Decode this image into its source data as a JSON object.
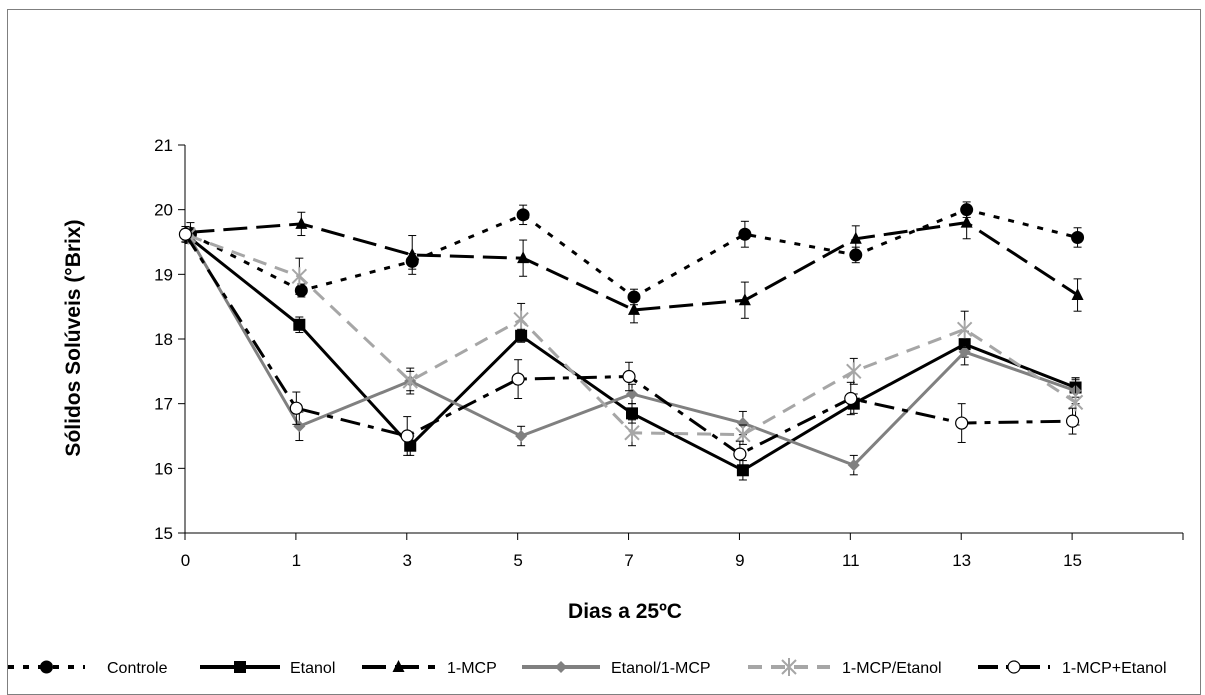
{
  "chart_data": {
    "type": "line",
    "title": "",
    "xlabel": "Dias a 25ºC",
    "ylabel": "Sólidos Solúveis (°Brix)",
    "x_ticks": [
      "0",
      "1",
      "3",
      "5",
      "7",
      "9",
      "11",
      "13",
      "15"
    ],
    "ylim": [
      15,
      21
    ],
    "y_ticks": [
      "15",
      "16",
      "17",
      "18",
      "19",
      "20",
      "21"
    ],
    "x": [
      0,
      1,
      3,
      5,
      7,
      9,
      11,
      13,
      15
    ],
    "series": [
      {
        "name": "Controle",
        "color": "#000000",
        "dash": "short-dash",
        "marker": "circle",
        "fill": "#000000",
        "values": [
          19.62,
          18.75,
          19.2,
          19.92,
          18.65,
          19.62,
          19.3,
          20.0,
          19.57
        ],
        "errors": [
          0.1,
          0.1,
          0.12,
          0.15,
          0.12,
          0.2,
          0.12,
          0.12,
          0.15
        ]
      },
      {
        "name": "Etanol",
        "color": "#000000",
        "dash": "solid",
        "marker": "square",
        "fill": "#000000",
        "values": [
          19.58,
          18.22,
          16.35,
          18.05,
          16.85,
          15.97,
          17.0,
          17.92,
          17.25
        ],
        "errors": [
          0.1,
          0.12,
          0.15,
          0.1,
          0.15,
          0.15,
          0.15,
          0.2,
          0.15
        ]
      },
      {
        "name": "1-MCP",
        "color": "#000000",
        "dash": "long-dash",
        "marker": "triangle",
        "fill": "#000000",
        "values": [
          19.65,
          19.78,
          19.3,
          19.25,
          18.45,
          18.6,
          19.55,
          19.8,
          18.68
        ],
        "errors": [
          0.15,
          0.18,
          0.3,
          0.28,
          0.2,
          0.28,
          0.2,
          0.25,
          0.25
        ]
      },
      {
        "name": "Etanol/1-MCP",
        "color": "#808080",
        "dash": "solid",
        "marker": "diamond",
        "fill": "#808080",
        "values": [
          19.6,
          16.65,
          17.35,
          16.5,
          17.15,
          16.7,
          16.05,
          17.8,
          17.2
        ],
        "errors": [
          0.12,
          0.22,
          0.15,
          0.15,
          0.15,
          0.18,
          0.15,
          0.2,
          0.2
        ]
      },
      {
        "name": "1-MCP/Etanol",
        "color": "#a6a6a6",
        "dash": "dash",
        "marker": "star",
        "fill": "none",
        "values": [
          19.6,
          18.97,
          17.35,
          18.3,
          16.55,
          16.52,
          17.5,
          18.15,
          17.02
        ],
        "errors": [
          0.12,
          0.28,
          0.2,
          0.25,
          0.2,
          0.15,
          0.2,
          0.28,
          0.35
        ]
      },
      {
        "name": "1-MCP+Etanol",
        "color": "#000000",
        "dash": "long-short",
        "marker": "open-circle",
        "fill": "#ffffff",
        "values": [
          19.62,
          16.93,
          16.5,
          17.38,
          17.42,
          16.22,
          17.08,
          16.7,
          16.73
        ],
        "errors": [
          0.12,
          0.25,
          0.3,
          0.3,
          0.22,
          0.2,
          0.25,
          0.3,
          0.2
        ]
      }
    ],
    "grid": false,
    "legend_position": "bottom"
  }
}
